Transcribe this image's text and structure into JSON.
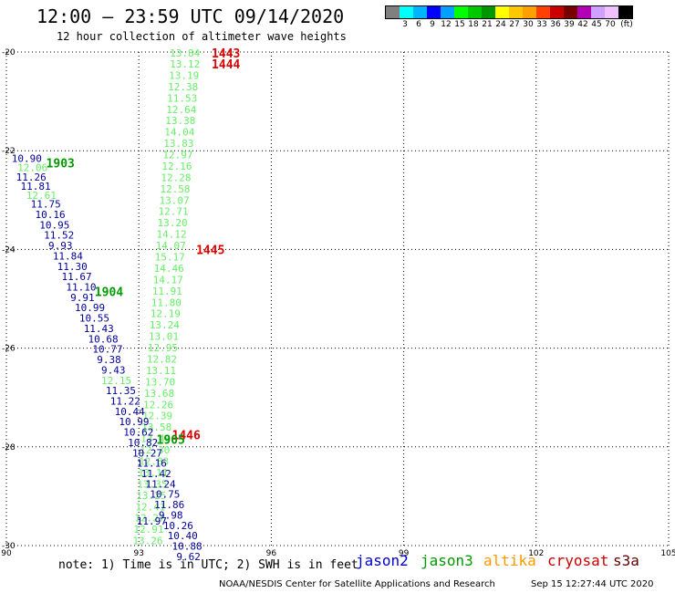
{
  "header": {
    "title": "12:00 – 23:59 UTC 09/14/2020",
    "subtitle": "12 hour collection of altimeter wave heights"
  },
  "color_scale": {
    "unit": "(ft)",
    "bins": [
      {
        "color": "#808080",
        "label": ""
      },
      {
        "color": "#00ffff",
        "label": "3"
      },
      {
        "color": "#00b4ff",
        "label": "6"
      },
      {
        "color": "#0000ff",
        "label": "9"
      },
      {
        "color": "#00a0ff",
        "label": "12"
      },
      {
        "color": "#00ff00",
        "label": "15"
      },
      {
        "color": "#00c800",
        "label": "18"
      },
      {
        "color": "#009600",
        "label": "21"
      },
      {
        "color": "#ffff00",
        "label": "24"
      },
      {
        "color": "#ffc800",
        "label": "27"
      },
      {
        "color": "#ffa000",
        "label": "30"
      },
      {
        "color": "#ff4000",
        "label": "33"
      },
      {
        "color": "#c80000",
        "label": "36"
      },
      {
        "color": "#780000",
        "label": "39"
      },
      {
        "color": "#b400b4",
        "label": "42"
      },
      {
        "color": "#d0a0ff",
        "label": "45"
      },
      {
        "color": "#f0c0ff",
        "label": "70"
      },
      {
        "color": "#000000",
        "label": ""
      }
    ]
  },
  "footer": {
    "note": "note: 1) Time is in UTC; 2) SWH is in feet",
    "credit": "NOAA/NESDIS Center for Satellite Applications and Research",
    "generated": "Sep 15 12:27:44 UTC 2020"
  },
  "legend": [
    {
      "name": "jason2",
      "color": "#0000cc"
    },
    {
      "name": "jason3",
      "color": "#009900"
    },
    {
      "name": "altika",
      "color": "#ff9900"
    },
    {
      "name": "cryosat",
      "color": "#cc0000"
    },
    {
      "name": "s3a",
      "color": "#660000"
    }
  ],
  "chart_data": {
    "type": "scatter",
    "title": "12:00 – 23:59 UTC 09/14/2020",
    "xlim": [
      90,
      105
    ],
    "ylim": [
      -30,
      -20
    ],
    "x_ticks": [
      90,
      93,
      96,
      99,
      102,
      105
    ],
    "y_ticks": [
      -20,
      -22,
      -24,
      -26,
      -28,
      -30
    ],
    "grid": true,
    "colors": {
      "light": "#66ee66",
      "blue": "#000099",
      "green": "#009900",
      "red": "#dd0000"
    },
    "time_labels": [
      {
        "text": "1443",
        "lon": 94.65,
        "lat": -20.02,
        "color": "red"
      },
      {
        "text": "1444",
        "lon": 94.65,
        "lat": -20.24,
        "color": "red"
      },
      {
        "text": "1903",
        "lon": 90.9,
        "lat": -22.25,
        "color": "green"
      },
      {
        "text": "1445",
        "lon": 94.3,
        "lat": -24.0,
        "color": "red"
      },
      {
        "text": "1904",
        "lon": 92.0,
        "lat": -24.85,
        "color": "green"
      },
      {
        "text": "1446",
        "lon": 93.75,
        "lat": -27.75,
        "color": "red"
      },
      {
        "text": "1905",
        "lon": 93.4,
        "lat": -27.85,
        "color": "green"
      }
    ],
    "series": [
      {
        "name": "jason3",
        "color": "light",
        "points": [
          {
            "lon": 93.7,
            "lat": -20.02,
            "value": "13.84"
          },
          {
            "lon": 93.7,
            "lat": -20.24,
            "value": "13.12"
          },
          {
            "lon": 93.68,
            "lat": -20.47,
            "value": "13.19"
          },
          {
            "lon": 93.66,
            "lat": -20.7,
            "value": "12.38"
          },
          {
            "lon": 93.64,
            "lat": -20.93,
            "value": "11.53"
          },
          {
            "lon": 93.62,
            "lat": -21.16,
            "value": "12.64"
          },
          {
            "lon": 93.6,
            "lat": -21.39,
            "value": "13.38"
          },
          {
            "lon": 93.58,
            "lat": -21.62,
            "value": "14.04"
          },
          {
            "lon": 93.56,
            "lat": -21.85,
            "value": "13.83"
          },
          {
            "lon": 93.54,
            "lat": -22.08,
            "value": "12.97"
          },
          {
            "lon": 93.52,
            "lat": -22.31,
            "value": "12.16"
          },
          {
            "lon": 93.5,
            "lat": -22.54,
            "value": "12.28"
          },
          {
            "lon": 93.48,
            "lat": -22.77,
            "value": "12.58"
          },
          {
            "lon": 93.46,
            "lat": -23.0,
            "value": "13.07"
          },
          {
            "lon": 93.44,
            "lat": -23.23,
            "value": "12.71"
          },
          {
            "lon": 93.42,
            "lat": -23.46,
            "value": "13.20"
          },
          {
            "lon": 93.4,
            "lat": -23.69,
            "value": "14.12"
          },
          {
            "lon": 93.38,
            "lat": -23.92,
            "value": "14.07"
          },
          {
            "lon": 93.36,
            "lat": -24.15,
            "value": "15.17"
          },
          {
            "lon": 93.34,
            "lat": -24.38,
            "value": "14.46"
          },
          {
            "lon": 93.32,
            "lat": -24.61,
            "value": "14.17"
          },
          {
            "lon": 93.3,
            "lat": -24.84,
            "value": "11.91"
          },
          {
            "lon": 93.28,
            "lat": -25.07,
            "value": "11.80"
          },
          {
            "lon": 93.26,
            "lat": -25.3,
            "value": "12.19"
          },
          {
            "lon": 93.24,
            "lat": -25.53,
            "value": "13.24"
          },
          {
            "lon": 93.22,
            "lat": -25.76,
            "value": "13.01"
          },
          {
            "lon": 93.2,
            "lat": -25.99,
            "value": "12.95"
          },
          {
            "lon": 93.18,
            "lat": -26.22,
            "value": "12.82"
          },
          {
            "lon": 93.16,
            "lat": -26.45,
            "value": "13.11"
          },
          {
            "lon": 93.14,
            "lat": -26.68,
            "value": "13.70"
          },
          {
            "lon": 93.12,
            "lat": -26.91,
            "value": "13.68"
          },
          {
            "lon": 93.1,
            "lat": -27.14,
            "value": "12.26"
          },
          {
            "lon": 93.08,
            "lat": -27.37,
            "value": "12.39"
          },
          {
            "lon": 93.06,
            "lat": -27.6,
            "value": "13.58"
          },
          {
            "lon": 93.04,
            "lat": -27.83,
            "value": "13.49"
          },
          {
            "lon": 93.02,
            "lat": -28.06,
            "value": "12.30"
          },
          {
            "lon": 93.0,
            "lat": -28.29,
            "value": "12.83"
          },
          {
            "lon": 92.98,
            "lat": -28.52,
            "value": "13.11"
          },
          {
            "lon": 92.96,
            "lat": -28.75,
            "value": "13.35"
          },
          {
            "lon": 92.94,
            "lat": -28.98,
            "value": "13.25"
          },
          {
            "lon": 92.92,
            "lat": -29.21,
            "value": "12.41"
          },
          {
            "lon": 92.9,
            "lat": -29.44,
            "value": "12.27"
          },
          {
            "lon": 92.88,
            "lat": -29.67,
            "value": "12.91"
          },
          {
            "lon": 92.86,
            "lat": -29.9,
            "value": "13.26"
          }
        ]
      },
      {
        "name": "jason2",
        "color": "blue",
        "points": [
          {
            "lon": 90.12,
            "lat": -22.15,
            "value": "10.90"
          },
          {
            "lon": 90.22,
            "lat": -22.53,
            "value": "11.26"
          },
          {
            "lon": 90.32,
            "lat": -22.72,
            "value": "11.81"
          },
          {
            "lon": 90.55,
            "lat": -23.08,
            "value": "11.75"
          },
          {
            "lon": 90.65,
            "lat": -23.29,
            "value": "10.16"
          },
          {
            "lon": 90.75,
            "lat": -23.5,
            "value": "10.95"
          },
          {
            "lon": 90.85,
            "lat": -23.71,
            "value": "11.52"
          },
          {
            "lon": 90.95,
            "lat": -23.92,
            "value": "9.93"
          },
          {
            "lon": 91.05,
            "lat": -24.13,
            "value": "11.84"
          },
          {
            "lon": 91.15,
            "lat": -24.34,
            "value": "11.30"
          },
          {
            "lon": 91.25,
            "lat": -24.55,
            "value": "11.67"
          },
          {
            "lon": 91.35,
            "lat": -24.76,
            "value": "11.10"
          },
          {
            "lon": 91.45,
            "lat": -24.97,
            "value": "9.91"
          },
          {
            "lon": 91.55,
            "lat": -25.18,
            "value": "10.99"
          },
          {
            "lon": 91.65,
            "lat": -25.39,
            "value": "10.55"
          },
          {
            "lon": 91.75,
            "lat": -25.6,
            "value": "11.43"
          },
          {
            "lon": 91.85,
            "lat": -25.81,
            "value": "10.68"
          },
          {
            "lon": 91.95,
            "lat": -26.02,
            "value": "10.77"
          },
          {
            "lon": 92.05,
            "lat": -26.23,
            "value": "9.38"
          },
          {
            "lon": 92.15,
            "lat": -26.44,
            "value": "9.43"
          },
          {
            "lon": 92.25,
            "lat": -26.86,
            "value": "11.35"
          },
          {
            "lon": 92.35,
            "lat": -27.07,
            "value": "11.22"
          },
          {
            "lon": 92.45,
            "lat": -27.28,
            "value": "10.44"
          },
          {
            "lon": 92.55,
            "lat": -27.49,
            "value": "10.99"
          },
          {
            "lon": 92.65,
            "lat": -27.7,
            "value": "10.62"
          },
          {
            "lon": 92.75,
            "lat": -27.91,
            "value": "10.82"
          },
          {
            "lon": 92.85,
            "lat": -28.12,
            "value": "10.27"
          },
          {
            "lon": 92.95,
            "lat": -28.33,
            "value": "11.16"
          },
          {
            "lon": 93.05,
            "lat": -28.54,
            "value": "11.42"
          },
          {
            "lon": 93.15,
            "lat": -28.75,
            "value": "11.24"
          },
          {
            "lon": 93.25,
            "lat": -28.96,
            "value": "10.75"
          },
          {
            "lon": 93.35,
            "lat": -29.17,
            "value": "11.86"
          },
          {
            "lon": 93.45,
            "lat": -29.38,
            "value": "9.98"
          },
          {
            "lon": 92.95,
            "lat": -29.5,
            "value": "11.97"
          },
          {
            "lon": 93.55,
            "lat": -29.59,
            "value": "10.26"
          },
          {
            "lon": 93.65,
            "lat": -29.8,
            "value": "10.40"
          },
          {
            "lon": 93.75,
            "lat": -30.01,
            "value": "10.88"
          },
          {
            "lon": 93.85,
            "lat": -30.22,
            "value": "9.62"
          }
        ]
      },
      {
        "name": "jason3-b",
        "color": "light",
        "points": [
          {
            "lon": 90.25,
            "lat": -22.34,
            "value": "12.06"
          },
          {
            "lon": 90.45,
            "lat": -22.9,
            "value": "12.61"
          },
          {
            "lon": 92.15,
            "lat": -26.65,
            "value": "12.15"
          }
        ]
      }
    ]
  }
}
